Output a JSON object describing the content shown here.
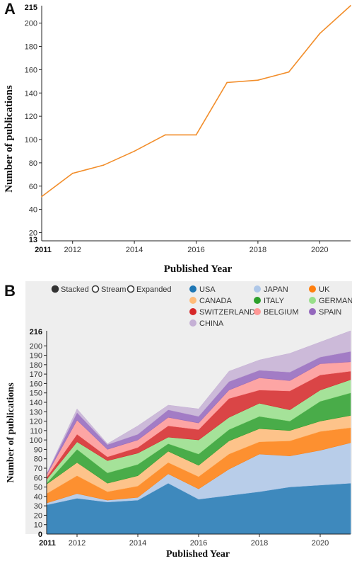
{
  "panel_a": {
    "letter": "A",
    "chart_data": {
      "type": "line",
      "x": [
        2011,
        2012,
        2013,
        2014,
        2015,
        2016,
        2017,
        2018,
        2019,
        2020,
        2021
      ],
      "values": [
        51,
        71,
        78,
        90,
        104,
        104,
        149,
        151,
        158,
        191,
        215
      ],
      "xlabel": "Published Year",
      "ylabel": "Number of publications",
      "ylim": [
        13,
        215
      ],
      "xlim": [
        2011,
        2021
      ],
      "yticks": [
        "20",
        "40",
        "60",
        "80",
        "100",
        "120",
        "140",
        "160",
        "180",
        "200"
      ],
      "xticks": [
        "2012",
        "2014",
        "2016",
        "2018",
        "2020"
      ],
      "ymin_label": "13",
      "ymax_label": "215",
      "xmin_label": "2011",
      "line_color": "#f28e2b",
      "grid": false
    }
  },
  "panel_b": {
    "letter": "B",
    "controls": [
      {
        "label": "Stacked",
        "selected": true
      },
      {
        "label": "Stream",
        "selected": false
      },
      {
        "label": "Expanded",
        "selected": false
      }
    ],
    "chart_data": {
      "type": "area",
      "mode": "stacked",
      "x": [
        2011,
        2012,
        2013,
        2014,
        2015,
        2016,
        2017,
        2018,
        2019,
        2020,
        2021
      ],
      "series": [
        {
          "name": "USA",
          "color": "#1f77b4",
          "values": [
            31,
            38,
            34,
            36,
            54,
            37,
            41,
            45,
            50,
            52,
            54
          ]
        },
        {
          "name": "JAPAN",
          "color": "#aec7e8",
          "values": [
            2,
            5,
            2,
            3,
            10,
            11,
            28,
            40,
            33,
            37,
            43
          ]
        },
        {
          "name": "UK",
          "color": "#ff7f0e",
          "values": [
            10,
            19,
            9,
            12,
            12,
            13,
            16,
            13,
            16,
            20,
            16
          ]
        },
        {
          "name": "CANADA",
          "color": "#ffbb78",
          "values": [
            10,
            14,
            9,
            11,
            12,
            12,
            14,
            14,
            11,
            11,
            13
          ]
        },
        {
          "name": "ITALY",
          "color": "#2ca02c",
          "values": [
            1,
            14,
            11,
            12,
            8,
            12,
            12,
            13,
            10,
            21,
            24
          ]
        },
        {
          "name": "GERMANY",
          "color": "#98df8a",
          "values": [
            4,
            8,
            13,
            12,
            7,
            15,
            13,
            14,
            12,
            12,
            14
          ]
        },
        {
          "name": "SWITZERLAND",
          "color": "#d62728",
          "values": [
            2,
            8,
            4,
            6,
            12,
            11,
            20,
            14,
            20,
            16,
            9
          ]
        },
        {
          "name": "BELGIUM",
          "color": "#ff9896",
          "values": [
            3,
            15,
            8,
            8,
            9,
            7,
            9,
            13,
            11,
            12,
            10
          ]
        },
        {
          "name": "SPAIN",
          "color": "#9467bd",
          "values": [
            1,
            8,
            5,
            6,
            8,
            7,
            9,
            8,
            9,
            7,
            11
          ]
        },
        {
          "name": "CHINA",
          "color": "#c5b0d5",
          "values": [
            0,
            4,
            1,
            9,
            5,
            8,
            11,
            11,
            20,
            16,
            22
          ]
        }
      ],
      "xlabel": "Published Year",
      "ylabel": "Number of publications",
      "ylim": [
        0,
        216
      ],
      "xlim": [
        2011,
        2021
      ],
      "yticks": [
        "10",
        "20",
        "30",
        "40",
        "50",
        "60",
        "70",
        "80",
        "90",
        "100",
        "110",
        "120",
        "130",
        "140",
        "150",
        "160",
        "170",
        "180",
        "190",
        "200"
      ],
      "xticks": [
        "2012",
        "2014",
        "2016",
        "2018",
        "2020"
      ],
      "ymin_label": "0",
      "ymax_label": "216",
      "xmin_label": "2011",
      "legend_position": "top",
      "grid": false,
      "background": "#eeeeee"
    }
  }
}
